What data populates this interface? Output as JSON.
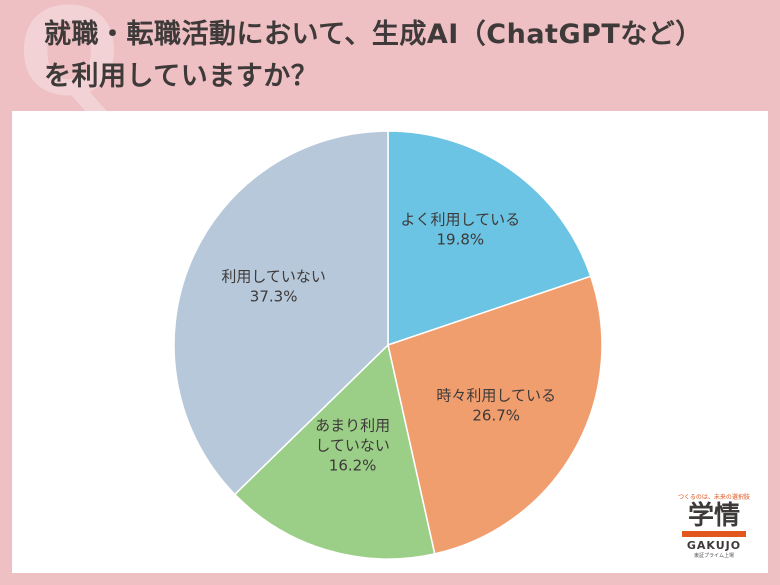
{
  "header": {
    "title_line1": "就職・転職活動において、生成AI（ChatGPTなど）",
    "title_line2": "を利用していますか？"
  },
  "chart_data": {
    "type": "pie",
    "title": "就職・転職活動において、生成AI（ChatGPTなど）を利用していますか？",
    "slices": [
      {
        "label_lines": [
          "よく利用している"
        ],
        "value": 19.8,
        "value_label": "19.8%",
        "color": "#6bc4e3"
      },
      {
        "label_lines": [
          "時々利用している"
        ],
        "value": 26.7,
        "value_label": "26.7%",
        "color": "#f19e6f"
      },
      {
        "label_lines": [
          "あまり利用",
          "していない"
        ],
        "value": 16.2,
        "value_label": "16.2%",
        "color": "#9bcf88"
      },
      {
        "label_lines": [
          "利用していない"
        ],
        "value": 37.3,
        "value_label": "37.3%",
        "color": "#b7c8da"
      }
    ],
    "start": "12 o'clock",
    "direction": "clockwise",
    "legend": "none"
  },
  "logo": {
    "tagline": "つくるのは、未来の選択肢",
    "mark": "学情",
    "name": "GAKUJO",
    "subtitle": "東証プライム上場"
  },
  "colors": {
    "background": "#eebfc3",
    "accent": "#e2571e"
  }
}
